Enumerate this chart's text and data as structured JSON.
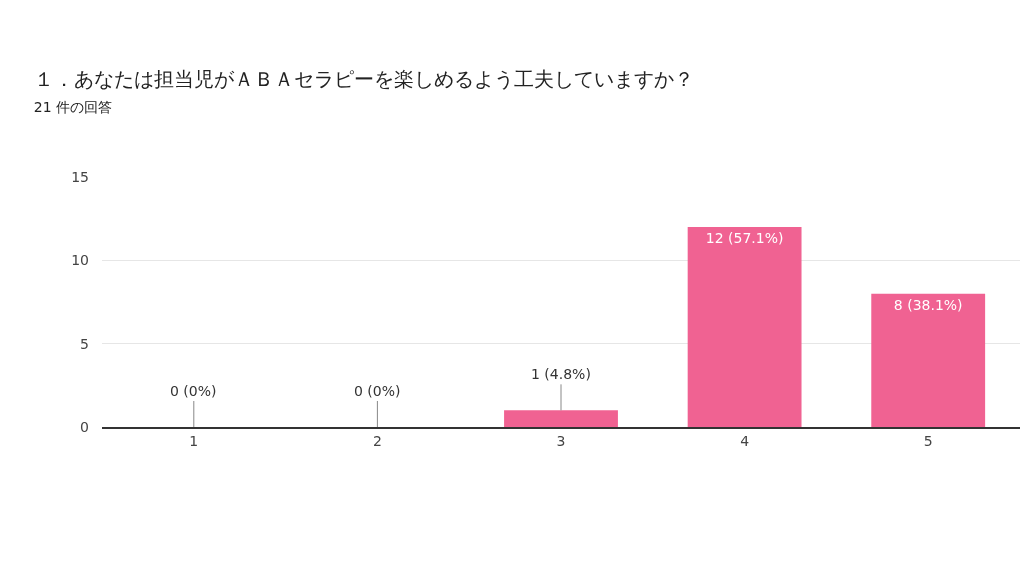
{
  "chart_data": {
    "type": "bar",
    "title": "１．あなたは担当児がＡＢＡセラピーを楽しめるよう工夫していますか？",
    "subtitle": "21 件の回答",
    "categories": [
      "1",
      "2",
      "3",
      "4",
      "5"
    ],
    "values": [
      0,
      0,
      1,
      12,
      8
    ],
    "value_labels": [
      "0 (0%)",
      "0 (0%)",
      "1 (4.8%)",
      "12 (57.1%)",
      "8 (38.1%)"
    ],
    "color": "#f06292",
    "ylim": [
      0,
      15
    ],
    "yticks": [
      0,
      5,
      10,
      15
    ],
    "grid": "y",
    "legend": false
  }
}
